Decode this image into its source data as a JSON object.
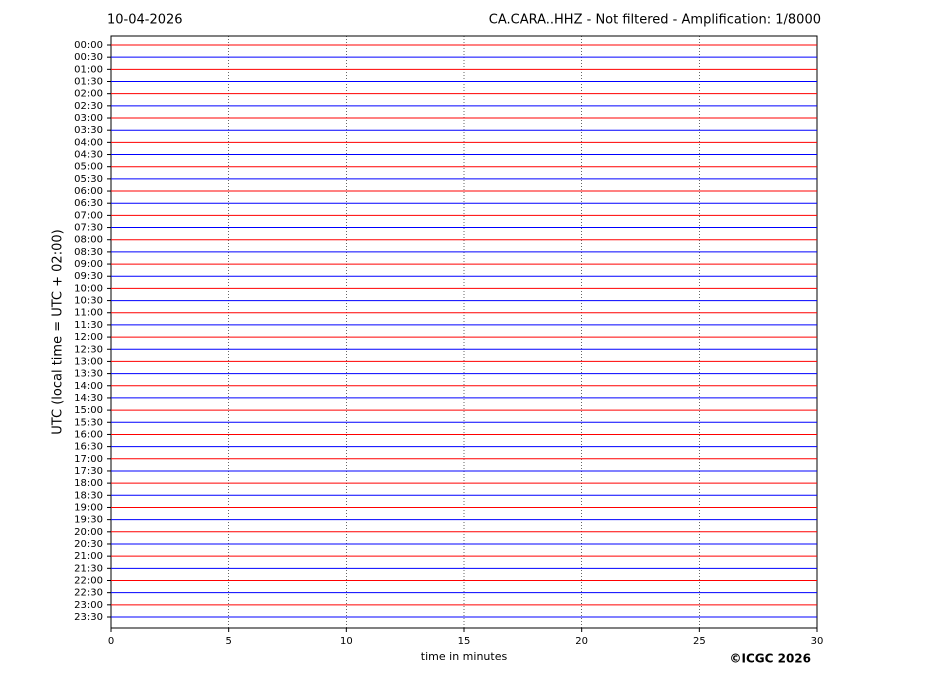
{
  "chart_data": {
    "type": "helicorder",
    "date": "10-04-2026",
    "title": "CA.CARA..HHZ - Not filtered - Amplification: 1/8000",
    "ylabel": "UTC (local time = UTC + 02:00)",
    "xlabel": "time in minutes",
    "credit": "©ICGC 2026",
    "categories": [
      "00:00",
      "00:30",
      "01:00",
      "01:30",
      "02:00",
      "02:30",
      "03:00",
      "03:30",
      "04:00",
      "04:30",
      "05:00",
      "05:30",
      "06:00",
      "06:30",
      "07:00",
      "07:30",
      "08:00",
      "08:30",
      "09:00",
      "09:30",
      "10:00",
      "10:30",
      "11:00",
      "11:30",
      "12:00",
      "12:30",
      "13:00",
      "13:30",
      "14:00",
      "14:30",
      "15:00",
      "15:30",
      "16:00",
      "16:30",
      "17:00",
      "17:30",
      "18:00",
      "18:30",
      "19:00",
      "19:30",
      "20:00",
      "20:30",
      "21:00",
      "21:30",
      "22:00",
      "22:30",
      "23:00",
      "23:30"
    ],
    "colors": [
      "#ff0000",
      "#0000ff"
    ],
    "xlim": [
      0,
      30
    ],
    "xticks": [
      0,
      5,
      10,
      15,
      20,
      25,
      30
    ],
    "grid": true
  }
}
